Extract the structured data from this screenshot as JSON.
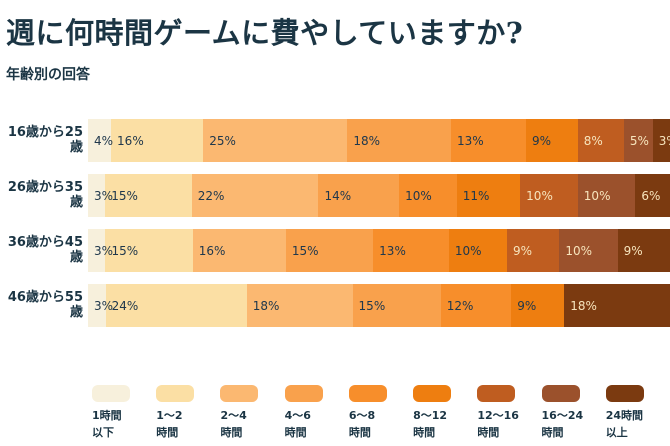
{
  "title": "週に何時間ゲームに費やしていますか?",
  "subtitle": "年齢別の回答",
  "colors": {
    "background": "#ffffff",
    "heading_text": "#1b3544",
    "dark_value_text": "#20384c",
    "light_value_text": "#f7e4bc"
  },
  "chart_data": {
    "type": "bar",
    "stacked": true,
    "orientation": "horizontal",
    "unit": "%",
    "normalized_to": 100,
    "title": "週に何時間ゲームに費やしていますか?",
    "subtitle": "年齢別の回答",
    "legend_position": "bottom",
    "categories": [
      {
        "name": "1時間以下",
        "legend_label": "1時間\n以下",
        "color": "#f7f0dc",
        "label_color": "#20384c"
      },
      {
        "name": "1〜2時間",
        "legend_label": "1〜2\n時間",
        "color": "#fbdfa4",
        "label_color": "#20384c"
      },
      {
        "name": "2〜4時間",
        "legend_label": "2〜4\n時間",
        "color": "#fbb871",
        "label_color": "#20384c"
      },
      {
        "name": "4〜6時間",
        "legend_label": "4〜6\n時間",
        "color": "#f9a14c",
        "label_color": "#20384c"
      },
      {
        "name": "6〜8時間",
        "legend_label": "6〜8\n時間",
        "color": "#f78e2b",
        "label_color": "#20384c"
      },
      {
        "name": "8〜12時間",
        "legend_label": "8〜12\n時間",
        "color": "#ee7e10",
        "label_color": "#20384c"
      },
      {
        "name": "12〜16時間",
        "legend_label": "12〜16\n時間",
        "color": "#bf5d20",
        "label_color": "#f7e4bc"
      },
      {
        "name": "16〜24時間",
        "legend_label": "16〜24\n時間",
        "color": "#9b512c",
        "label_color": "#f7e4bc"
      },
      {
        "name": "24時間以上",
        "legend_label": "24時間\n以上",
        "color": "#7b3a10",
        "label_color": "#f7e4bc"
      }
    ],
    "rows": [
      {
        "label": "16歳から25歳",
        "segments": [
          {
            "c": 0,
            "v": 4
          },
          {
            "c": 1,
            "v": 16
          },
          {
            "c": 2,
            "v": 25
          },
          {
            "c": 3,
            "v": 18
          },
          {
            "c": 4,
            "v": 13
          },
          {
            "c": 5,
            "v": 9
          },
          {
            "c": 6,
            "v": 8
          },
          {
            "c": 7,
            "v": 5
          },
          {
            "c": 8,
            "v": 3
          }
        ]
      },
      {
        "label": "26歳から35歳",
        "segments": [
          {
            "c": 0,
            "v": 3
          },
          {
            "c": 1,
            "v": 15
          },
          {
            "c": 2,
            "v": 22
          },
          {
            "c": 3,
            "v": 14
          },
          {
            "c": 4,
            "v": 10
          },
          {
            "c": 5,
            "v": 11
          },
          {
            "c": 6,
            "v": 10
          },
          {
            "c": 7,
            "v": 10
          },
          {
            "c": 8,
            "v": 6
          }
        ]
      },
      {
        "label": "36歳から45歳",
        "segments": [
          {
            "c": 0,
            "v": 3
          },
          {
            "c": 1,
            "v": 15
          },
          {
            "c": 2,
            "v": 16
          },
          {
            "c": 3,
            "v": 15
          },
          {
            "c": 4,
            "v": 13
          },
          {
            "c": 5,
            "v": 10
          },
          {
            "c": 6,
            "v": 9
          },
          {
            "c": 7,
            "v": 10
          },
          {
            "c": 8,
            "v": 9
          }
        ]
      },
      {
        "label": "46歳から55歳",
        "segments": [
          {
            "c": 0,
            "v": 3
          },
          {
            "c": 1,
            "v": 24
          },
          {
            "c": 2,
            "v": 18
          },
          {
            "c": 3,
            "v": 15
          },
          {
            "c": 4,
            "v": 12
          },
          {
            "c": 5,
            "v": 9
          },
          {
            "c": 8,
            "v": 18
          }
        ]
      }
    ],
    "value_suffix": "%"
  }
}
